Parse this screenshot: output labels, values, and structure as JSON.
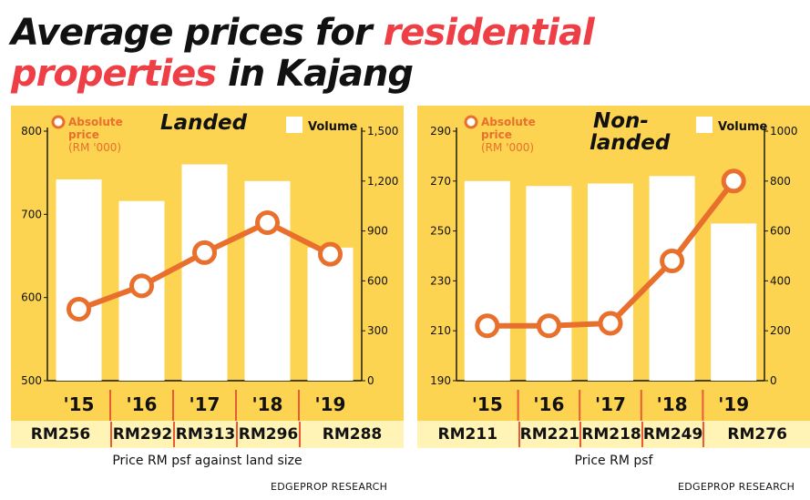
{
  "title": {
    "part1": "Average prices for ",
    "highlight1": "residential",
    "highlight2": "properties",
    "part2": " in Kajang"
  },
  "colors": {
    "panel_bg": "#fcd451",
    "price_row_bg": "#fff3b6",
    "bar_fill": "#ffffff",
    "line": "#e8702c",
    "highlight": "#ef3f46",
    "separator": "#e95a36"
  },
  "chart_data": [
    {
      "type": "bar+line",
      "panel_title": "Landed",
      "categories": [
        "'15",
        "'16",
        "'17",
        "'18",
        "'19"
      ],
      "line_series": {
        "name": "Absolute price (RM '000)",
        "name_line1": "Absolute",
        "name_line2": "price",
        "name_line3": "(RM '000)",
        "values": [
          586,
          614,
          654,
          690,
          652
        ],
        "axis_ticks": [
          500,
          600,
          700,
          800
        ],
        "ylim": [
          500,
          800
        ]
      },
      "bar_series": {
        "name": "Volume",
        "values": [
          1210,
          1080,
          1300,
          1200,
          800
        ],
        "axis_ticks": [
          "0",
          "300",
          "600",
          "900",
          "1,200",
          "1,500"
        ],
        "ylim": [
          0,
          1500
        ]
      },
      "price_psf": [
        "RM256",
        "RM292",
        "RM313",
        "RM296",
        "RM288"
      ],
      "price_caption": "Price RM psf against land size",
      "source": "EDGEPROP RESEARCH"
    },
    {
      "type": "bar+line",
      "panel_title_line1": "Non-",
      "panel_title_line2": "landed",
      "categories": [
        "'15",
        "'16",
        "'17",
        "'18",
        "'19"
      ],
      "line_series": {
        "name": "Absolute price (RM '000)",
        "name_line1": "Absolute",
        "name_line2": "price",
        "name_line3": "(RM '000)",
        "values": [
          212,
          212,
          213,
          238,
          270
        ],
        "axis_ticks": [
          190,
          210,
          230,
          250,
          270,
          290
        ],
        "ylim": [
          190,
          290
        ]
      },
      "bar_series": {
        "name": "Volume",
        "values": [
          800,
          780,
          790,
          820,
          630
        ],
        "axis_ticks": [
          "0",
          "200",
          "400",
          "600",
          "800",
          "1000"
        ],
        "ylim": [
          0,
          1000
        ]
      },
      "price_psf": [
        "RM211",
        "RM221",
        "RM218",
        "RM249",
        "RM276"
      ],
      "price_caption": "Price RM psf",
      "source": "EDGEPROP RESEARCH"
    }
  ]
}
